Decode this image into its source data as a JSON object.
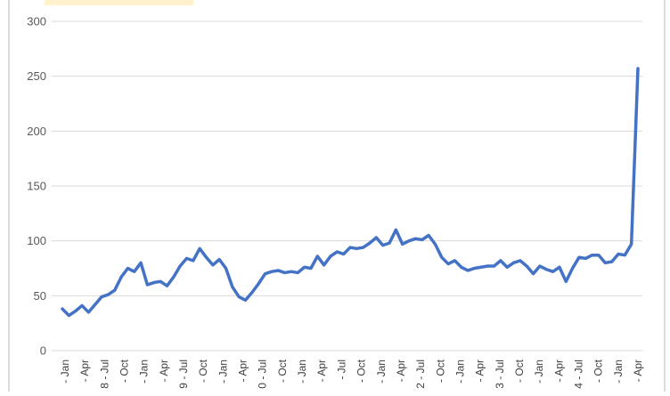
{
  "chart_data": {
    "type": "line",
    "title": "",
    "xlabel": "",
    "ylabel": "",
    "ylim": [
      0,
      300
    ],
    "y_ticks": [
      0,
      50,
      100,
      150,
      200,
      250,
      300
    ],
    "grid": "horizontal",
    "legend": "none",
    "title_box_color": "#fff2cc",
    "x_tick_labels": [
      "- Jan",
      "- Apr",
      "8 - Jul",
      "- Oct",
      "- Jan",
      "- Apr",
      "9 - Jul",
      "- Oct",
      "- Jan",
      "- Apr",
      "0 - Jul",
      "- Oct",
      "- Jan",
      "- Apr",
      "- Jul",
      "- Oct",
      "- Jan",
      "- Apr",
      "2 - Jul",
      "- Oct",
      "- Jan",
      "- Apr",
      "3 - Jul",
      "- Oct",
      "- Jan",
      "- Apr",
      "4 - Jul",
      "- Oct",
      "- Jan",
      "- Apr"
    ],
    "series": [
      {
        "color": "#4472c4",
        "values": [
          38,
          32,
          36,
          41,
          35,
          42,
          49,
          51,
          55,
          67,
          75,
          72,
          80,
          60,
          62,
          63,
          59,
          67,
          77,
          84,
          82,
          93,
          85,
          78,
          83,
          75,
          58,
          49,
          46,
          53,
          61,
          70,
          72,
          73,
          71,
          72,
          71,
          76,
          75,
          86,
          78,
          86,
          90,
          88,
          94,
          93,
          94,
          98,
          103,
          96,
          98,
          110,
          97,
          100,
          102,
          101,
          105,
          97,
          85,
          79,
          82,
          76,
          73,
          75,
          76,
          77,
          77,
          82,
          76,
          80,
          82,
          77,
          70,
          77,
          74,
          72,
          76,
          63,
          75,
          85,
          84,
          87,
          87,
          80,
          81,
          88,
          87,
          97,
          257
        ]
      }
    ]
  }
}
